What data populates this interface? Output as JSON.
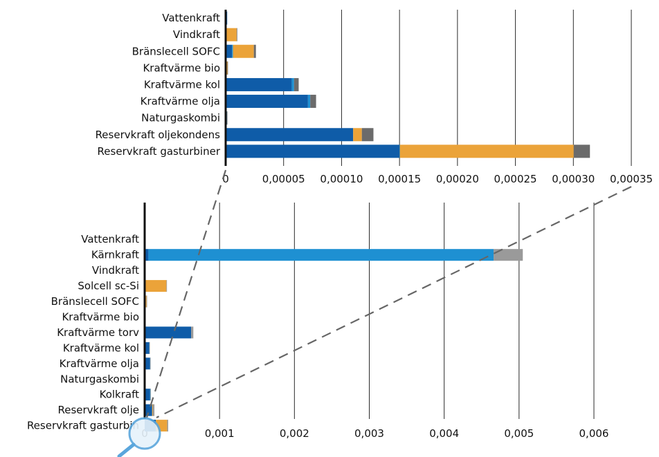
{
  "colors": {
    "dark_blue": "#0f5ca8",
    "light_blue": "#1e90d2",
    "orange": "#eba339",
    "gray": "#6b6b6b",
    "light_gray": "#9a9a9a",
    "dashed_line": "#666666",
    "magnifier": "#5aa6dc"
  },
  "chart_data": [
    {
      "type": "bar",
      "orientation": "horizontal",
      "stacked": true,
      "categories": [
        "Vattenkraft",
        "Vindkraft",
        "Bränslecell SOFC",
        "Kraftvärme bio",
        "Kraftvärme kol",
        "Kraftvärme olja",
        "Naturgaskombi",
        "Reservkraft oljekondens",
        "Reservkraft gasturbiner"
      ],
      "series": [
        {
          "color": "#0f5ca8",
          "values": [
            1.3e-06,
            0,
            5.5e-06,
            0,
            5.7e-05,
            7.1e-05,
            8e-07,
            0.00011,
            0.00015
          ]
        },
        {
          "color": "#1e90d2",
          "values": [
            0,
            0,
            8e-07,
            0,
            2e-06,
            2e-06,
            2e-07,
            0,
            3e-07
          ]
        },
        {
          "color": "#eba339",
          "values": [
            0,
            9.5e-06,
            1.8e-05,
            1.5e-06,
            0,
            0,
            0,
            7.5e-06,
            0.00015
          ]
        },
        {
          "color": "#6b6b6b",
          "values": [
            0,
            3e-07,
            1.8e-06,
            3e-07,
            4e-06,
            5e-06,
            3e-07,
            1e-05,
            1.4e-05
          ]
        }
      ],
      "xlim": [
        0,
        0.00035
      ],
      "x_ticks": [
        "0",
        "0,00005",
        "0,00010",
        "0,00015",
        "0,00020",
        "0,00025",
        "0,00030",
        "0,00035"
      ],
      "grid": "vertical"
    },
    {
      "type": "bar",
      "orientation": "horizontal",
      "stacked": true,
      "categories": [
        "Vattenkraft",
        "Kärnkraft",
        "Vindkraft",
        "Solcell sc-Si",
        "Bränslecell SOFC",
        "Kraftvärme bio",
        "Kraftvärme torv",
        "Kraftvärme kol",
        "Kraftvärme olja",
        "Naturgaskombi",
        "Kolkraft",
        "Reservkraft olje",
        "Reservkraft gasturbin"
      ],
      "series": [
        {
          "color": "#0f5ca8",
          "values": [
            1e-06,
            5e-05,
            0,
            0,
            6e-06,
            0,
            0.00062,
            6e-05,
            7e-05,
            1e-06,
            7e-05,
            0.0001,
            0.00015
          ]
        },
        {
          "color": "#1e90d2",
          "values": [
            0,
            0.00461,
            0,
            0,
            1e-06,
            0,
            0,
            2e-06,
            2e-06,
            0,
            6e-06,
            0,
            0
          ]
        },
        {
          "color": "#eba339",
          "values": [
            0,
            0,
            1e-05,
            0.00029,
            1.8e-05,
            1.5e-06,
            0,
            0,
            0,
            0,
            0,
            1e-05,
            0.00015
          ]
        },
        {
          "color": "#9a9a9a",
          "values": [
            0,
            0.00039,
            0,
            3e-06,
            2e-06,
            0,
            3e-05,
            4e-06,
            5e-06,
            0,
            5e-06,
            2e-05,
            1.4e-05
          ]
        }
      ],
      "xlim": [
        0,
        0.006
      ],
      "x_ticks": [
        "0",
        "0,001",
        "0,002",
        "0,003",
        "0,004",
        "0,005",
        "0,006"
      ],
      "grid": "vertical"
    }
  ]
}
